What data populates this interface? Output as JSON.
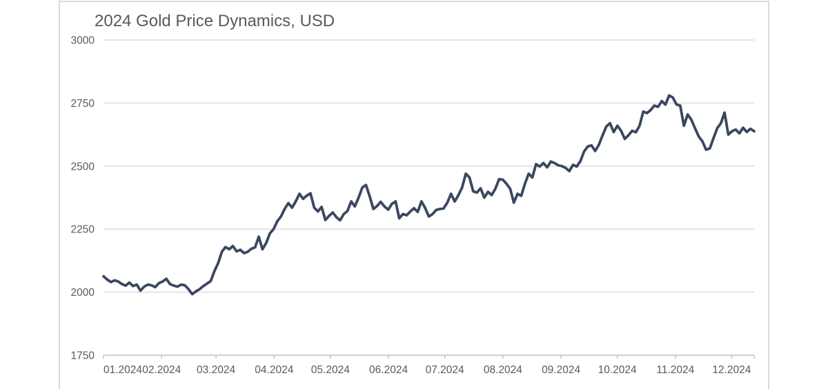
{
  "chart": {
    "title": "2024 Gold Price Dynamics, USD"
  },
  "chart_data": {
    "type": "line",
    "title": "2024 Gold Price Dynamics, USD",
    "unit": "USD",
    "legend": "none",
    "grid": true,
    "ylim": [
      1750,
      3000
    ],
    "y_ticks": [
      3000,
      2750,
      2500,
      2250,
      2000,
      1750
    ],
    "x_labels": [
      "01.2024",
      "02.2024",
      "03.2024",
      "04.2024",
      "05.2024",
      "06.2024",
      "07.2024",
      "08.2024",
      "09.2024",
      "10.2024",
      "11.2024",
      "12.2024"
    ],
    "month_start_days": [
      0,
      31,
      60,
      91,
      121,
      152,
      182,
      213,
      244,
      274,
      305,
      335
    ],
    "x_total_days": 347,
    "colors": {
      "line": "#3b4760",
      "grid": "#d9d9d9",
      "axis": "#bfbfbf",
      "labels": "#595959",
      "frame": "#d9d9d9"
    },
    "values": [
      2063,
      2050,
      2040,
      2047,
      2042,
      2032,
      2026,
      2038,
      2024,
      2030,
      2006,
      2022,
      2030,
      2027,
      2020,
      2036,
      2042,
      2053,
      2032,
      2026,
      2022,
      2030,
      2027,
      2012,
      1992,
      2003,
      2012,
      2024,
      2034,
      2044,
      2083,
      2115,
      2160,
      2179,
      2170,
      2183,
      2162,
      2168,
      2155,
      2160,
      2172,
      2178,
      2220,
      2170,
      2195,
      2233,
      2250,
      2281,
      2300,
      2330,
      2353,
      2335,
      2360,
      2390,
      2370,
      2383,
      2392,
      2335,
      2320,
      2338,
      2286,
      2302,
      2316,
      2297,
      2285,
      2310,
      2322,
      2360,
      2340,
      2375,
      2415,
      2425,
      2380,
      2330,
      2342,
      2358,
      2340,
      2327,
      2350,
      2360,
      2293,
      2310,
      2305,
      2320,
      2333,
      2318,
      2360,
      2334,
      2300,
      2310,
      2326,
      2330,
      2332,
      2355,
      2390,
      2360,
      2385,
      2415,
      2470,
      2455,
      2400,
      2395,
      2412,
      2375,
      2398,
      2385,
      2410,
      2448,
      2446,
      2430,
      2410,
      2355,
      2390,
      2382,
      2430,
      2470,
      2455,
      2508,
      2498,
      2512,
      2495,
      2518,
      2512,
      2503,
      2500,
      2493,
      2480,
      2505,
      2498,
      2520,
      2558,
      2578,
      2582,
      2560,
      2585,
      2622,
      2657,
      2670,
      2635,
      2660,
      2640,
      2608,
      2622,
      2640,
      2634,
      2660,
      2716,
      2710,
      2722,
      2740,
      2735,
      2758,
      2744,
      2780,
      2772,
      2744,
      2740,
      2660,
      2705,
      2684,
      2650,
      2618,
      2598,
      2565,
      2570,
      2611,
      2650,
      2670,
      2712,
      2625,
      2638,
      2645,
      2630,
      2652,
      2635,
      2648,
      2638
    ]
  }
}
